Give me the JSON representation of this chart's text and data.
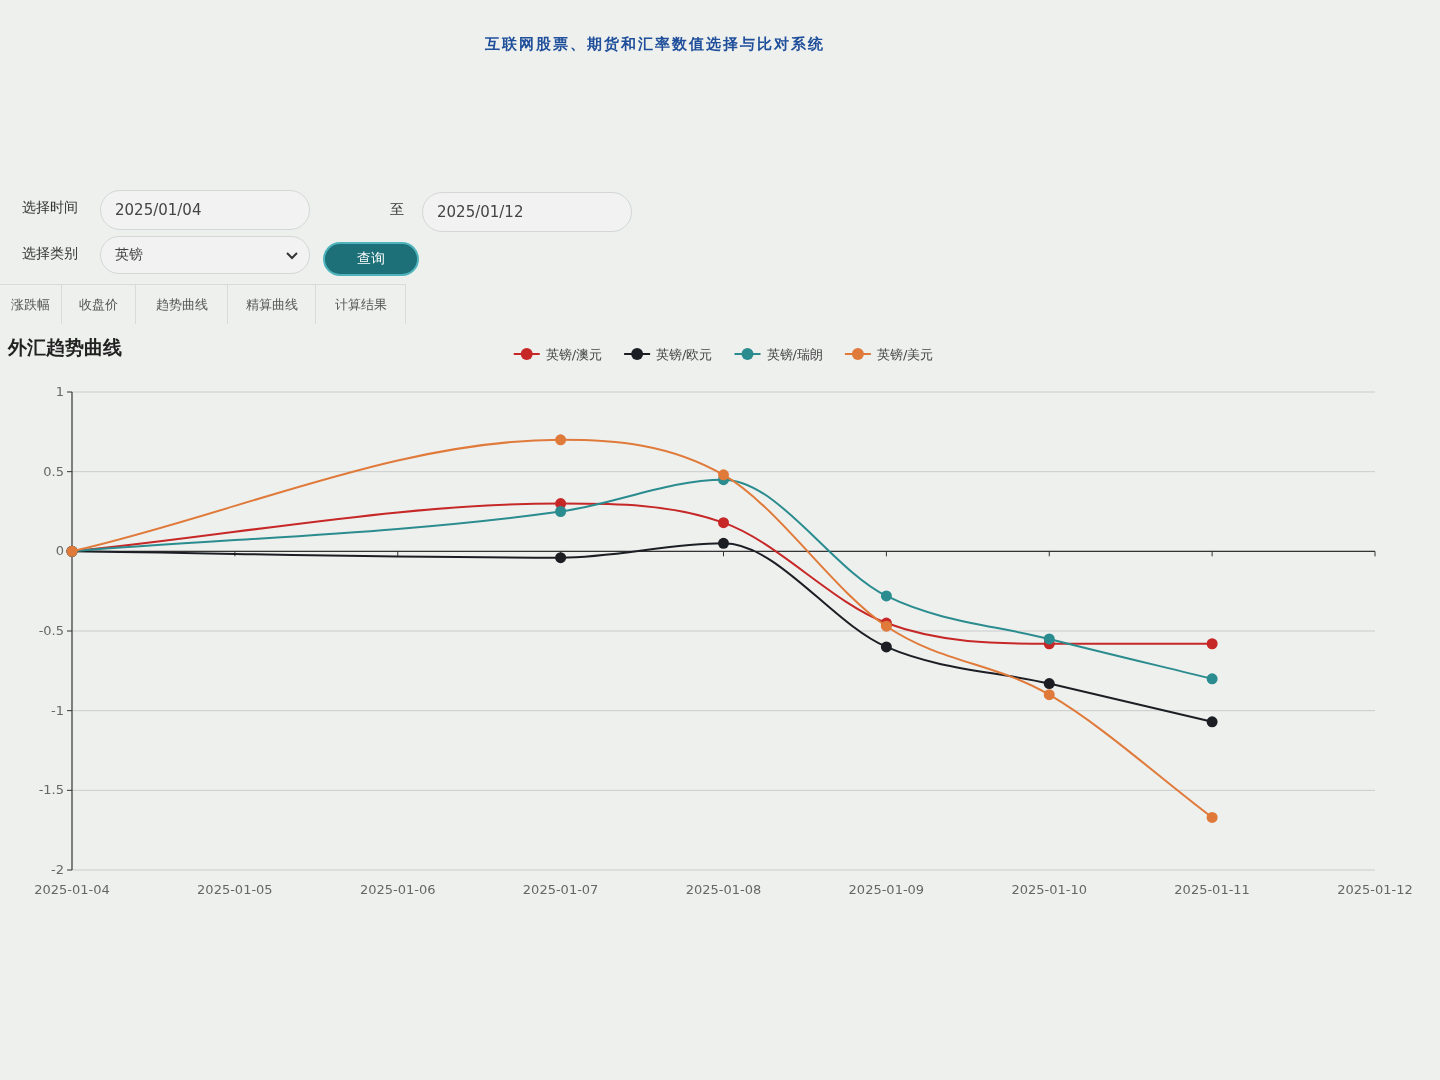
{
  "chart_data": [
    {
      "type": "other",
      "title": "互联网股票、期货和汇率数值选择与比对系统",
      "annotations": [
        "选择时间",
        "2025/01/04",
        "至",
        "2025/01/12",
        "选择类别",
        "英镑",
        "查询",
        "涨跌幅",
        "收盘价",
        "趋势曲线",
        "精算曲线",
        "计算结果"
      ]
    },
    {
      "type": "line",
      "title": "外汇趋势曲线",
      "x": [
        "2025-01-04",
        "2025-01-07",
        "2025-01-08",
        "2025-01-09",
        "2025-01-10",
        "2025-01-11"
      ],
      "xlim": [
        "2025-01-04",
        "2025-01-12"
      ],
      "xticks": [
        "2025-01-04",
        "2025-01-05",
        "2025-01-06",
        "2025-01-07",
        "2025-01-08",
        "2025-01-09",
        "2025-01-10",
        "2025-01-11",
        "2025-01-12"
      ],
      "ylim": [
        -2,
        1
      ],
      "yticks": [
        -2,
        -1.5,
        -1,
        -0.5,
        0,
        0.5,
        1
      ],
      "grid": "y",
      "legend": "top",
      "marker": "circle",
      "line_style": "solid",
      "series": [
        {
          "name": "英镑/澳元",
          "color": "#c62828",
          "values": [
            0,
            0.3,
            0.18,
            -0.45,
            -0.58,
            -0.58
          ]
        },
        {
          "name": "英镑/欧元",
          "color": "#1b1f24",
          "values": [
            0,
            -0.04,
            0.05,
            -0.6,
            -0.83,
            -1.07
          ]
        },
        {
          "name": "英镑/瑞朗",
          "color": "#2b8c8f",
          "values": [
            0,
            0.25,
            0.45,
            -0.28,
            -0.55,
            -0.8
          ]
        },
        {
          "name": "英镑/美元",
          "color": "#e07a3a",
          "values": [
            0,
            0.7,
            0.48,
            -0.47,
            -0.9,
            -1.67
          ]
        }
      ]
    }
  ]
}
